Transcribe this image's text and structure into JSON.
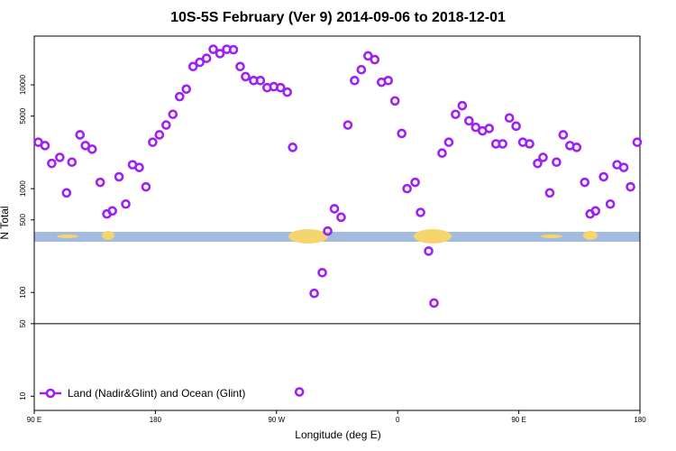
{
  "chart_data": {
    "type": "scatter",
    "title": "10S-5S February (Ver 9)   2014-09-06 to 2018-12-01",
    "x_label": "Longitude (deg E)",
    "y_label": "N Total",
    "xlim": [
      90,
      540
    ],
    "ylim": [
      7.3,
      29500
    ],
    "ylog": true,
    "xticks": [
      {
        "value": 90,
        "label": "90 E"
      },
      180,
      {
        "value": 270,
        "label": "90 W"
      },
      {
        "value": 360,
        "label": "0"
      },
      {
        "value": 450,
        "label": "90 E"
      },
      {
        "value": 540,
        "label": "180"
      }
    ],
    "yticks": [
      10,
      50,
      100,
      500,
      1000,
      5000,
      10000
    ],
    "hline": 50,
    "legend": "bottom-left",
    "series": [
      {
        "name": "Land (Nadir&Glint) and Ocean (Glint)",
        "color": "#a020f0",
        "x": [
          93,
          98,
          103,
          109,
          114,
          118,
          124,
          128,
          133,
          139,
          144,
          148,
          153,
          158,
          163,
          168,
          173,
          178,
          183,
          188,
          193,
          198,
          203,
          208,
          213,
          218,
          223,
          228,
          233,
          238,
          243,
          247,
          253,
          258,
          263,
          268,
          273,
          278,
          282,
          287,
          298,
          304,
          308,
          313,
          318,
          323,
          328,
          333,
          338,
          343,
          348,
          353,
          358,
          363,
          367,
          373,
          377,
          383,
          387,
          393,
          398,
          403,
          408,
          413,
          418,
          423,
          428,
          433,
          438,
          443,
          448,
          453,
          458,
          464,
          468,
          473,
          478,
          483,
          488,
          493,
          499,
          503,
          507,
          513,
          518,
          523,
          528,
          533,
          538
        ],
        "y": [
          2800,
          2600,
          1750,
          2000,
          910,
          1800,
          3300,
          2600,
          2400,
          1150,
          570,
          610,
          1300,
          710,
          1700,
          1600,
          1040,
          2800,
          3300,
          4100,
          5200,
          7700,
          9100,
          15000,
          16500,
          18000,
          22000,
          20000,
          22000,
          21800,
          15000,
          12000,
          11000,
          11000,
          9400,
          9600,
          9400,
          8500,
          2500,
          11,
          98,
          155,
          390,
          640,
          530,
          4100,
          11000,
          14000,
          19000,
          17500,
          10600,
          11000,
          7000,
          3400,
          1000,
          1150,
          590,
          250,
          79,
          2200,
          2800,
          5200,
          6300,
          4500,
          3900,
          3600,
          3800,
          2700,
          2700,
          4800,
          4000,
          2800,
          2700,
          1750,
          2000,
          910,
          1800,
          3300,
          2600,
          2500,
          1150,
          570,
          610,
          1300,
          710,
          1700,
          1600,
          1040,
          2800
        ]
      }
    ]
  }
}
